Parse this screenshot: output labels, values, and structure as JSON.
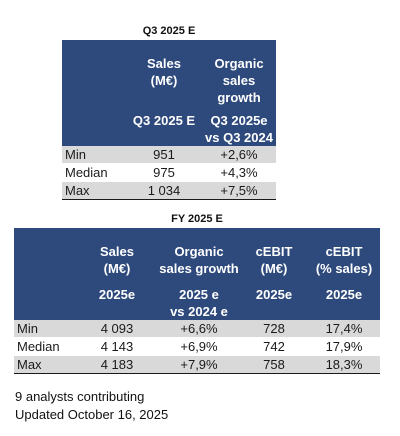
{
  "q3": {
    "title": "Q3 2025 E",
    "headers": [
      {
        "label": "Sales\n(M€)",
        "sub": "Q3 2025 E"
      },
      {
        "label": "Organic\nsales growth",
        "sub": "Q3 2025e\nvs Q3 2024"
      }
    ],
    "rows": [
      {
        "name": "Min",
        "values": [
          "951",
          "+2,6%"
        ]
      },
      {
        "name": "Median",
        "values": [
          "975",
          "+4,3%"
        ]
      },
      {
        "name": "Max",
        "values": [
          "1 034",
          "+7,5%"
        ]
      }
    ]
  },
  "fy": {
    "title": "FY 2025 E",
    "headers": [
      {
        "label": "Sales\n(M€)",
        "sub": "2025e"
      },
      {
        "label": "Organic\nsales growth",
        "sub": "2025 e\nvs 2024 e"
      },
      {
        "label": "cEBIT\n(M€)",
        "sub": "2025e"
      },
      {
        "label": "cEBIT\n(% sales)",
        "sub": "2025e"
      }
    ],
    "rows": [
      {
        "name": "Min",
        "values": [
          "4 093",
          "+6,6%",
          "728",
          "17,4%"
        ]
      },
      {
        "name": "Median",
        "values": [
          "4 143",
          "+6,9%",
          "742",
          "17,9%"
        ]
      },
      {
        "name": "Max",
        "values": [
          "4 183",
          "+7,9%",
          "758",
          "18,3%"
        ]
      }
    ]
  },
  "footer": {
    "analysts": "9 analysts contributing",
    "updated": "Updated October 16, 2025"
  },
  "colors": {
    "header_bg": "#2e4a7c",
    "row_shade": "#d9d9d9"
  }
}
